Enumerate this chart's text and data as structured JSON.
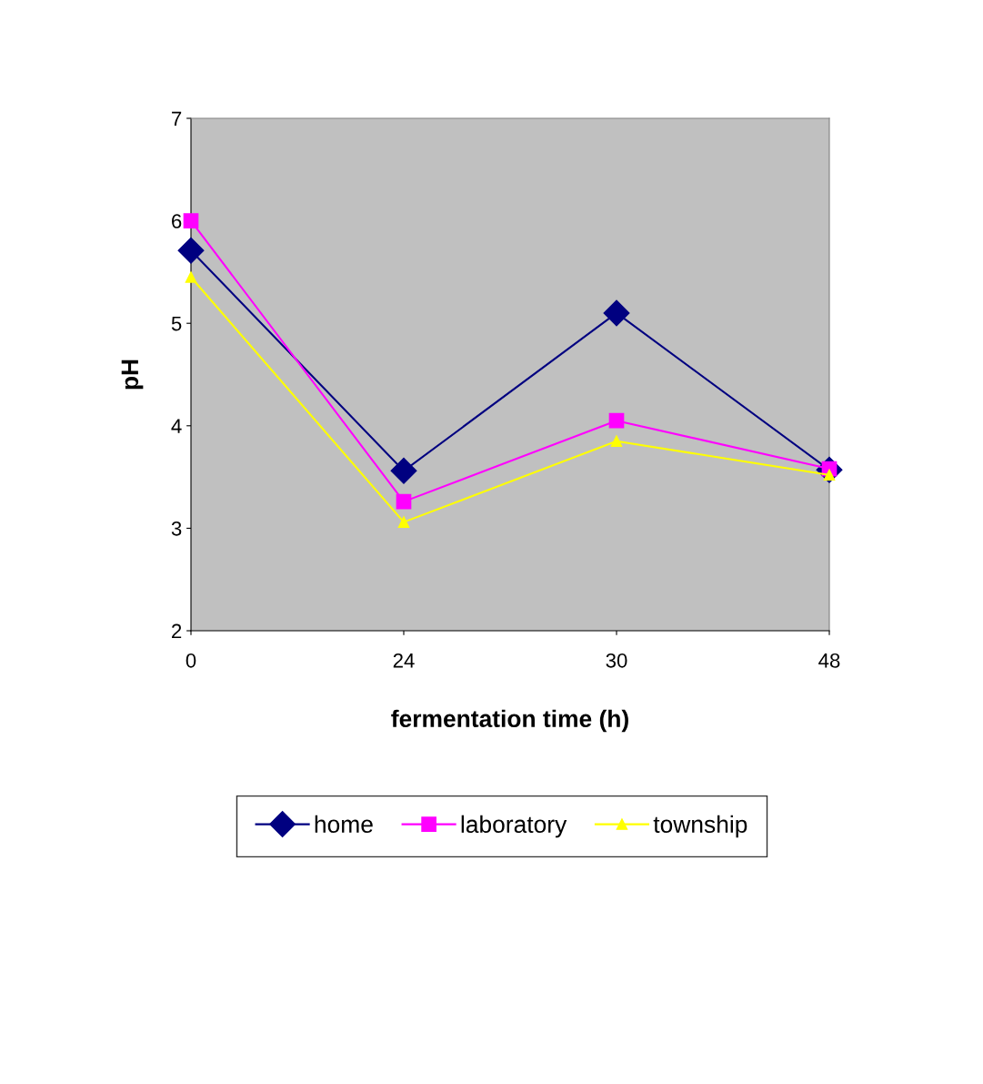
{
  "chart_data": {
    "type": "line",
    "xlabel": "fermentation time (h)",
    "ylabel": "pH",
    "categories": [
      "0",
      "24",
      "30",
      "48"
    ],
    "series": [
      {
        "name": "home",
        "color": "#000080",
        "marker": "diamond",
        "values": [
          5.71,
          3.56,
          5.1,
          3.57
        ]
      },
      {
        "name": "laboratory",
        "color": "#ff00ff",
        "marker": "square",
        "values": [
          6.0,
          3.26,
          4.05,
          3.58
        ]
      },
      {
        "name": "township",
        "color": "#ffff00",
        "marker": "triangle",
        "values": [
          5.45,
          3.06,
          3.85,
          3.52
        ]
      }
    ],
    "ylim": [
      2,
      7
    ],
    "yticks": [
      2,
      3,
      4,
      5,
      6,
      7
    ],
    "grid": false,
    "legend": "bottom",
    "line_style": "solid"
  }
}
